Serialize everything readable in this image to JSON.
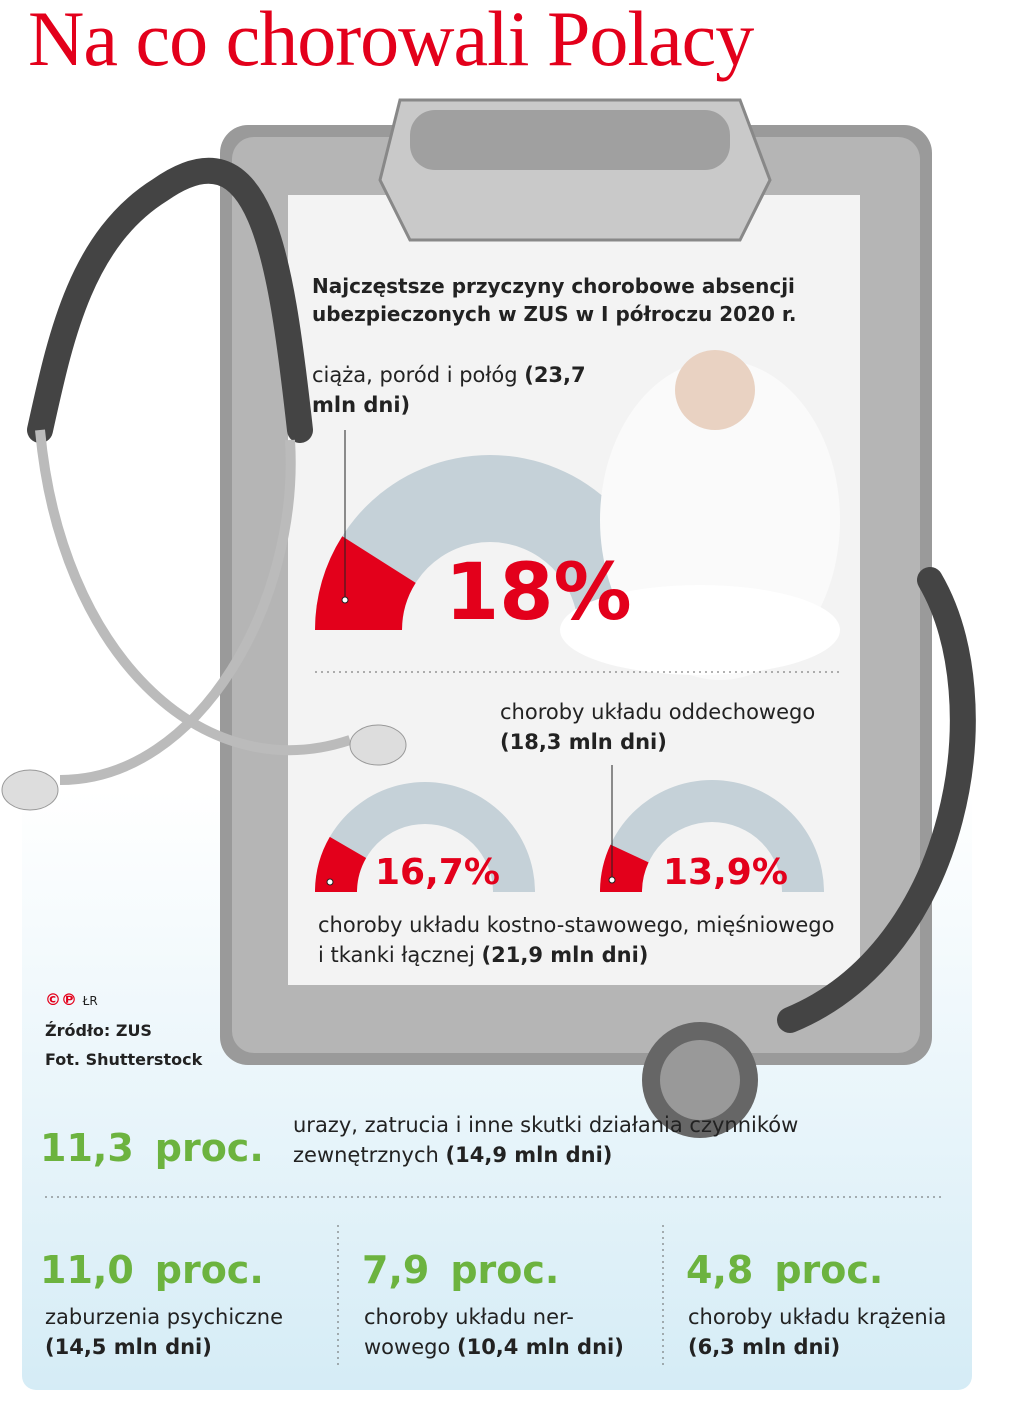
{
  "title": "Na co chorowali Polacy",
  "subtitle": "Najczęstsze przyczyny chorobowe absencji ubezpieczonych w ZUS w I półroczu 2020 r.",
  "gauges": [
    {
      "value": 18,
      "value_label": "18%",
      "caption": "ciąża, poród i połóg",
      "days": "(23,7 mln dni)"
    },
    {
      "value": 16.7,
      "value_label": "16,7%",
      "caption": "choroby układu kostno-stawowego, mięśniowego i tkanki łącznej",
      "days": "(21,9 mln dni)"
    },
    {
      "value": 13.9,
      "value_label": "13,9%",
      "caption": "choroby układu oddechowego",
      "days": "(18,3 mln dni)"
    }
  ],
  "items": [
    {
      "value": "11,3",
      "unit": "proc.",
      "caption": "urazy, zatrucia i inne skutki działania czynników zewnętrznych",
      "days": "(14,9 mln dni)"
    },
    {
      "value": "11,0",
      "unit": "proc.",
      "caption": "zaburzenia psychiczne",
      "days": "(14,5 mln dni)"
    },
    {
      "value": "7,9",
      "unit": "proc.",
      "caption": "choroby układu ner-wowego",
      "days": "(10,4 mln dni)"
    },
    {
      "value": "4,8",
      "unit": "proc.",
      "caption": "choroby układu krążenia",
      "days": "(6,3 mln dni)"
    }
  ],
  "credits": {
    "copyright": "©℗",
    "author": "ŁR",
    "source": "Źródło: ZUS",
    "photo": "Fot. Shutterstock"
  }
}
